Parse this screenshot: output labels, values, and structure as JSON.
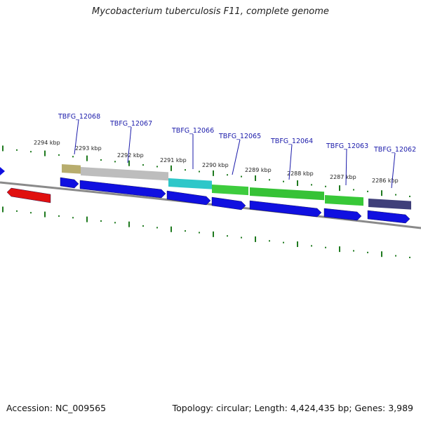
{
  "title": "Mycobacterium tuberculosis F11, complete genome",
  "accession": "Accession: NC_009565",
  "summary": "Topology: circular; Length: 4,424,435 bp; Genes: 3,989",
  "colors": {
    "backbone": "#8a8a8a",
    "ticks": "#1f7a1f",
    "cds": "#1010e0",
    "rev_cds": "#e01010",
    "locus_text": "#1a1aaa"
  },
  "scale_labels": [
    {
      "text": "2294 kbp"
    },
    {
      "text": "2293 kbp"
    },
    {
      "text": "2292 kbp"
    },
    {
      "text": "2291 kbp"
    },
    {
      "text": "2290 kbp"
    },
    {
      "text": "2289 kbp"
    },
    {
      "text": "2288 kbp"
    },
    {
      "text": "2287 kbp"
    },
    {
      "text": "2286 kbp"
    }
  ],
  "genes": [
    {
      "locus": "TBFG_12068",
      "color": "#b8ad6e"
    },
    {
      "locus": "TBFG_12067",
      "color": "#bdbdbd"
    },
    {
      "locus": "TBFG_12066",
      "color": "#2ec7c9"
    },
    {
      "locus": "TBFG_12065",
      "color": "#3dcc3d"
    },
    {
      "locus": "TBFG_12064",
      "color": "#36c236"
    },
    {
      "locus": "TBFG_12063",
      "color": "#38c838"
    },
    {
      "locus": "TBFG_12062",
      "color": "#3f3f7a"
    }
  ]
}
